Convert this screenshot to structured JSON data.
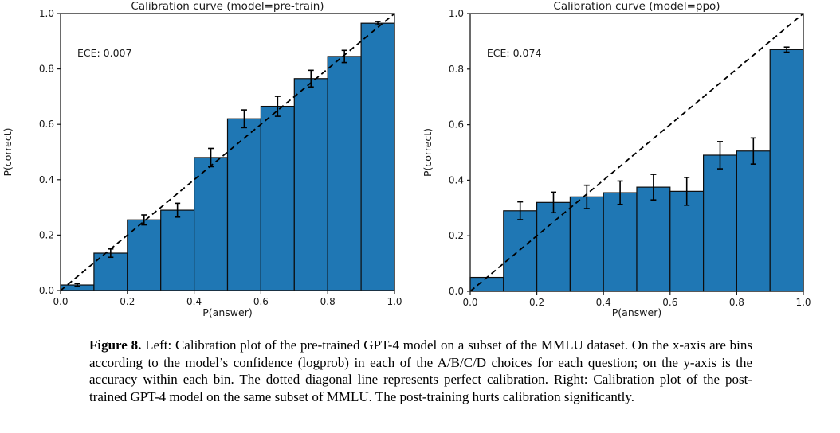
{
  "figure": {
    "caption_label": "Figure 8.",
    "caption_text": "Left: Calibration plot of the pre-trained GPT-4 model on a subset of the MMLU dataset. On the x-axis are bins according to the model’s confidence (logprob) in each of the A/B/C/D choices for each question; on the y-axis is the accuracy within each bin. The dotted diagonal line represents perfect calibration. Right: Calibration plot of the post-trained GPT-4 model on the same subset of MMLU. The post-training hurts calibration significantly."
  },
  "colors": {
    "bar_fill": "#1f77b4",
    "bar_edge": "#0d0d0d",
    "diagonal": "#000000",
    "axis": "#1a1a1a",
    "text": "#1a1a1a"
  },
  "chart_data": [
    {
      "type": "bar",
      "title": "Calibration curve (model=pre-train)",
      "annotation": "ECE: 0.007",
      "xlabel": "P(answer)",
      "ylabel": "P(correct)",
      "xlim": [
        0.0,
        1.0
      ],
      "ylim": [
        0.0,
        1.0
      ],
      "xticks": [
        "0.0",
        "0.2",
        "0.4",
        "0.6",
        "0.8",
        "1.0"
      ],
      "yticks": [
        "0.0",
        "0.2",
        "0.4",
        "0.6",
        "0.8",
        "1.0"
      ],
      "bin_width": 0.1,
      "bin_centers": [
        0.05,
        0.15,
        0.25,
        0.35,
        0.45,
        0.55,
        0.65,
        0.75,
        0.85,
        0.95
      ],
      "values": [
        0.02,
        0.135,
        0.255,
        0.29,
        0.48,
        0.62,
        0.665,
        0.765,
        0.845,
        0.965
      ],
      "errors": [
        0.005,
        0.015,
        0.018,
        0.025,
        0.033,
        0.032,
        0.036,
        0.03,
        0.022,
        0.006
      ],
      "diagonal_line": "dashed y=x (perfect calibration)",
      "grid": false,
      "legend": "none"
    },
    {
      "type": "bar",
      "title": "Calibration curve (model=ppo)",
      "annotation": "ECE: 0.074",
      "xlabel": "P(answer)",
      "ylabel": "P(correct)",
      "xlim": [
        0.0,
        1.0
      ],
      "ylim": [
        0.0,
        1.0
      ],
      "xticks": [
        "0.0",
        "0.2",
        "0.4",
        "0.6",
        "0.8",
        "1.0"
      ],
      "yticks": [
        "0.0",
        "0.2",
        "0.4",
        "0.6",
        "0.8",
        "1.0"
      ],
      "bin_width": 0.1,
      "bin_centers": [
        0.05,
        0.15,
        0.25,
        0.35,
        0.45,
        0.55,
        0.65,
        0.75,
        0.85,
        0.95
      ],
      "values": [
        0.05,
        0.29,
        0.32,
        0.34,
        0.355,
        0.375,
        0.36,
        0.49,
        0.505,
        0.87
      ],
      "errors": [
        0,
        0.032,
        0.037,
        0.042,
        0.042,
        0.046,
        0.05,
        0.049,
        0.047,
        0.009
      ],
      "diagonal_line": "dashed y=x (perfect calibration)",
      "grid": false,
      "legend": "none"
    }
  ]
}
